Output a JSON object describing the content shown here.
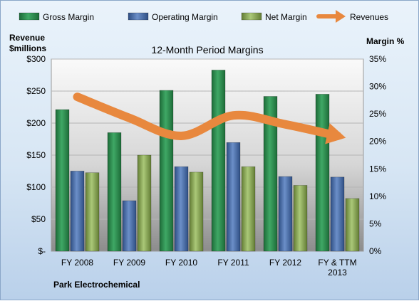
{
  "chart_data": {
    "type": "bar",
    "title": "12-Month Period Margins",
    "left_axis_title": [
      "Revenue",
      "$millions"
    ],
    "right_axis_title": "Margin %",
    "company": "Park Electrochemical",
    "categories": [
      [
        "FY 2008"
      ],
      [
        "FY 2009"
      ],
      [
        "FY 2010"
      ],
      [
        "FY 2011"
      ],
      [
        "FY 2012"
      ],
      [
        "FY & TTM",
        "2013"
      ]
    ],
    "y_left": {
      "min": 0,
      "max": 300,
      "step": 50,
      "tick_labels": [
        "$-",
        "$50",
        "$100",
        "$150",
        "$200",
        "$250",
        "$300"
      ]
    },
    "y_right": {
      "min": 0,
      "max": 35,
      "step": 5,
      "tick_labels": [
        "0%",
        "5%",
        "10%",
        "15%",
        "20%",
        "25%",
        "30%",
        "35%"
      ]
    },
    "legend_position": "top",
    "series": [
      {
        "name": "Gross Margin",
        "axis": "right",
        "color": "#2e8b4f",
        "values": [
          25.8,
          21.6,
          29.3,
          33.0,
          28.2,
          28.6
        ]
      },
      {
        "name": "Operating Margin",
        "axis": "right",
        "color": "#4a6fa8",
        "values": [
          14.6,
          9.2,
          15.4,
          19.8,
          13.6,
          13.5
        ]
      },
      {
        "name": "Net Margin",
        "axis": "right",
        "color": "#8fac5a",
        "values": [
          14.3,
          17.5,
          14.4,
          15.4,
          12.0,
          9.6
        ]
      },
      {
        "name": "Revenues",
        "axis": "left",
        "type": "line",
        "color": "#e8883e",
        "values": [
          241,
          208,
          180,
          212,
          198,
          180
        ]
      }
    ]
  }
}
